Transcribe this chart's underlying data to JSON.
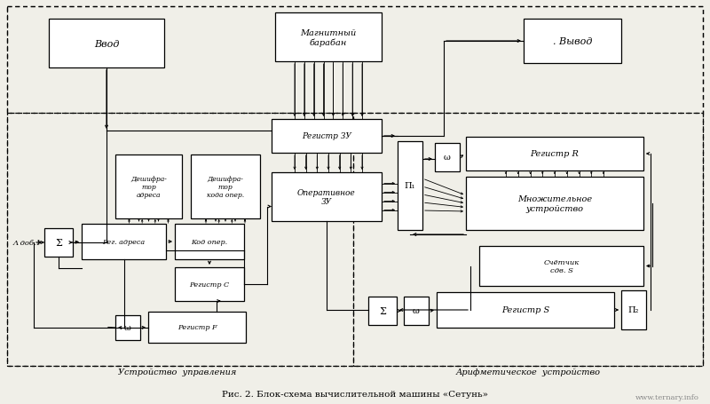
{
  "bg": "#f0efe8",
  "title": "Рис. 2. Блок-схема вычислительной машины «Сетунь»",
  "watermark": "www.ternary.info",
  "ctrl_label": "Устройство  управления",
  "arith_label": "Арифметическое  устройство",
  "lambda_text": "Л доб.1"
}
